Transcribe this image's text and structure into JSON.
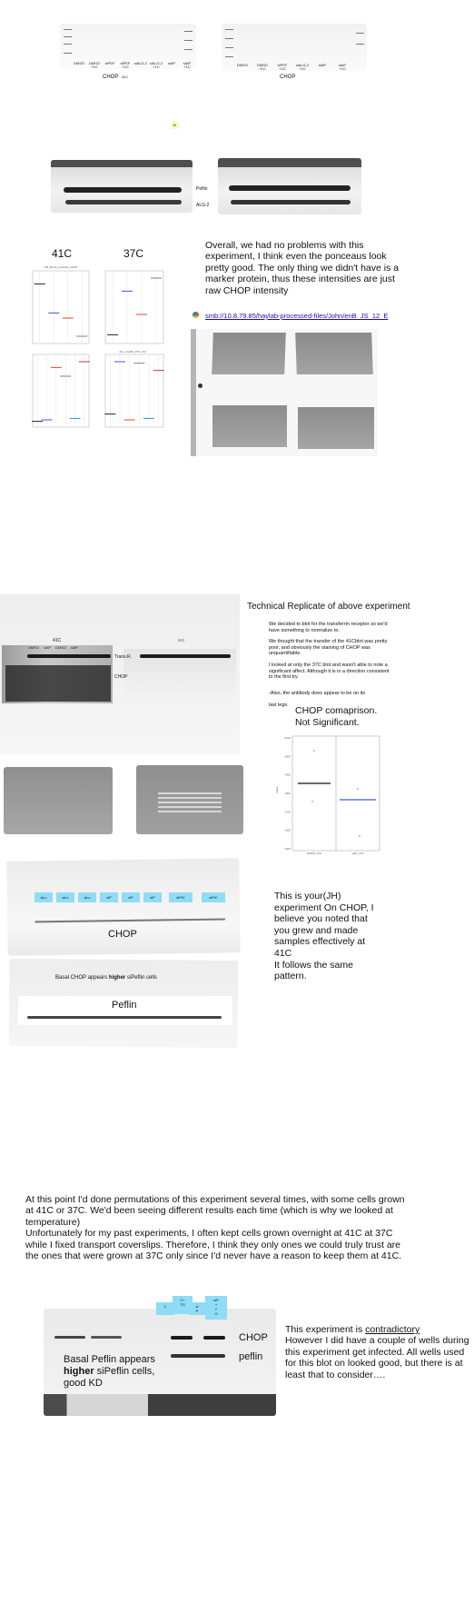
{
  "top_blots": {
    "left_lanes": [
      "DMSO",
      "DMSO\n+1C",
      "siPEF",
      "siPEF\n+1C",
      "siALG-2",
      "siALG-2\n+1C",
      "siAP",
      "siAP\n+1C"
    ],
    "left_caption": "CHOP",
    "left_caption_suffix": "41C",
    "right_lanes": [
      "DMSO",
      "DMSO\n+1C",
      "siPEF\n+1C",
      "siALG-2\n+1C",
      "siAP",
      "siAP\n+1C"
    ],
    "right_caption": "CHOP",
    "marker": "B"
  },
  "pef_blots": {
    "label_peflin": "Peflin",
    "label_alg2": "ALG-2"
  },
  "charts_section": {
    "title_41c": "41C",
    "title_37c": "37C",
    "small_chart_title_1": "CB_Shock_Induced_CHOP",
    "small_chart_title_2": "ALL_CHOP_37C_Ctrl",
    "ylabel": "Value"
  },
  "chart_data": [
    {
      "type": "scatter",
      "title": "CB_Shock_Induced_CHOP",
      "series": [
        {
          "name": "",
          "values": [
            0.82,
            0.42,
            0.35,
            0.1
          ]
        }
      ],
      "categories": [
        "1",
        "2",
        "3",
        "4"
      ]
    },
    {
      "type": "scatter",
      "title": "",
      "series": [
        {
          "name": "",
          "values": [
            0.12,
            0.72,
            0.4,
            0.9
          ]
        }
      ],
      "categories": [
        "1",
        "2",
        "3",
        "4"
      ]
    },
    {
      "type": "scatter",
      "title": "",
      "series": [
        {
          "name": "",
          "values": [
            0.08,
            0.1,
            0.82,
            0.7,
            0.12,
            0.9
          ]
        }
      ],
      "categories": [
        "1",
        "2",
        "3",
        "4",
        "5",
        "6"
      ]
    },
    {
      "type": "scatter",
      "title": "ALL_CHOP_37C_Ctrl",
      "series": [
        {
          "name": "",
          "values": [
            0.18,
            0.9,
            0.1,
            0.88,
            0.12,
            0.78
          ]
        }
      ],
      "categories": [
        "1",
        "2",
        "3",
        "4",
        "5",
        "6"
      ]
    }
  ],
  "overall_text": "Overall, we had no problems with this experiment, I think even the ponceaus look pretty good. The only thing we didn't have is a marker protein, thus these intensities are just raw CHOP intensity",
  "smb_link": "smb://10.8.79.85/haylab-processed-files/John/enB_JS_12_E",
  "replicate": {
    "title": "Technical Replicate of above experiment",
    "p1": "We decided to blot for the transferrin receptor so we'd have something to normalize to.",
    "p2": "We thought that the transfer of the 41Cblot was pretty poor, and obviously the staining of CHOP was unquantifiable.",
    "p3": "I looked at only the 37C blot and wasn't able to note a significant affect. Although it is in a direction consistent to the first try.",
    "p4": "-Also, the antibody does appear to be on its last legs.",
    "blot_label_41c": "41C",
    "blot_label_37c": "37C",
    "label_transr": "Trans.R.",
    "label_chop": "CHOP",
    "lanes": [
      "DMSO",
      "siAP",
      "DMSO",
      "siAP",
      "DMSO",
      "siAP"
    ]
  },
  "chop_comparison": {
    "title_line1": "CHOP comaprison.",
    "title_line2": "Not Significant.",
    "xlabels": [
      "DMSO_37C",
      "siAP_37C"
    ],
    "ylabel": "Value",
    "yticks": [
      "2100",
      "2000",
      "1900",
      "1800",
      "1700",
      "1600",
      "1500"
    ]
  },
  "jh_section": {
    "text": "This is your(JH) experiment On CHOP, I believe you noted that you grew and made samples effectively at 41C\nIt follows the same pattern.",
    "label_chop": "CHOP",
    "label_basal": "Basal CHOP appears ",
    "label_basal_bold": "higher",
    "label_basal_end": " siPeflin cells",
    "label_peflin": "Peflin",
    "lane_tags": [
      "siLc",
      "siLc",
      "siLc",
      "siP",
      "siP",
      "siP",
      "siPIC",
      "siPIC"
    ]
  },
  "permutations_text": "At this point I'd done permutations of this experiment several times, with some cells grown at 41C or 37C. We'd been seeing different results each time (which is why we looked at temperature)\nUnfortunately for my past experiments, I often kept cells grown overnight at 41C at 37C while I fixed transport coverslips. Therefore, I think they only ones we could truly trust are the ones that were grown at 37C only since I'd never have a reason to keep them at 41C.",
  "last_section": {
    "tags": [
      "C",
      "C+\nTG",
      "si\nP",
      "siP\n+\nT\nG"
    ],
    "label_chop": "CHOP",
    "label_peflin": "peflin",
    "basal_line1": "Basal Peflin appears",
    "basal_bold": "higher",
    "basal_line2_end": " siPeflin cells,",
    "basal_line3": "good KD",
    "contra_prefix": "This experiment is ",
    "contra_word": "contradictory",
    "contra_rest": "However I did have a couple of wells during this experiment get infected. All wells used for this blot on looked good, but there is at least that to consider…."
  }
}
